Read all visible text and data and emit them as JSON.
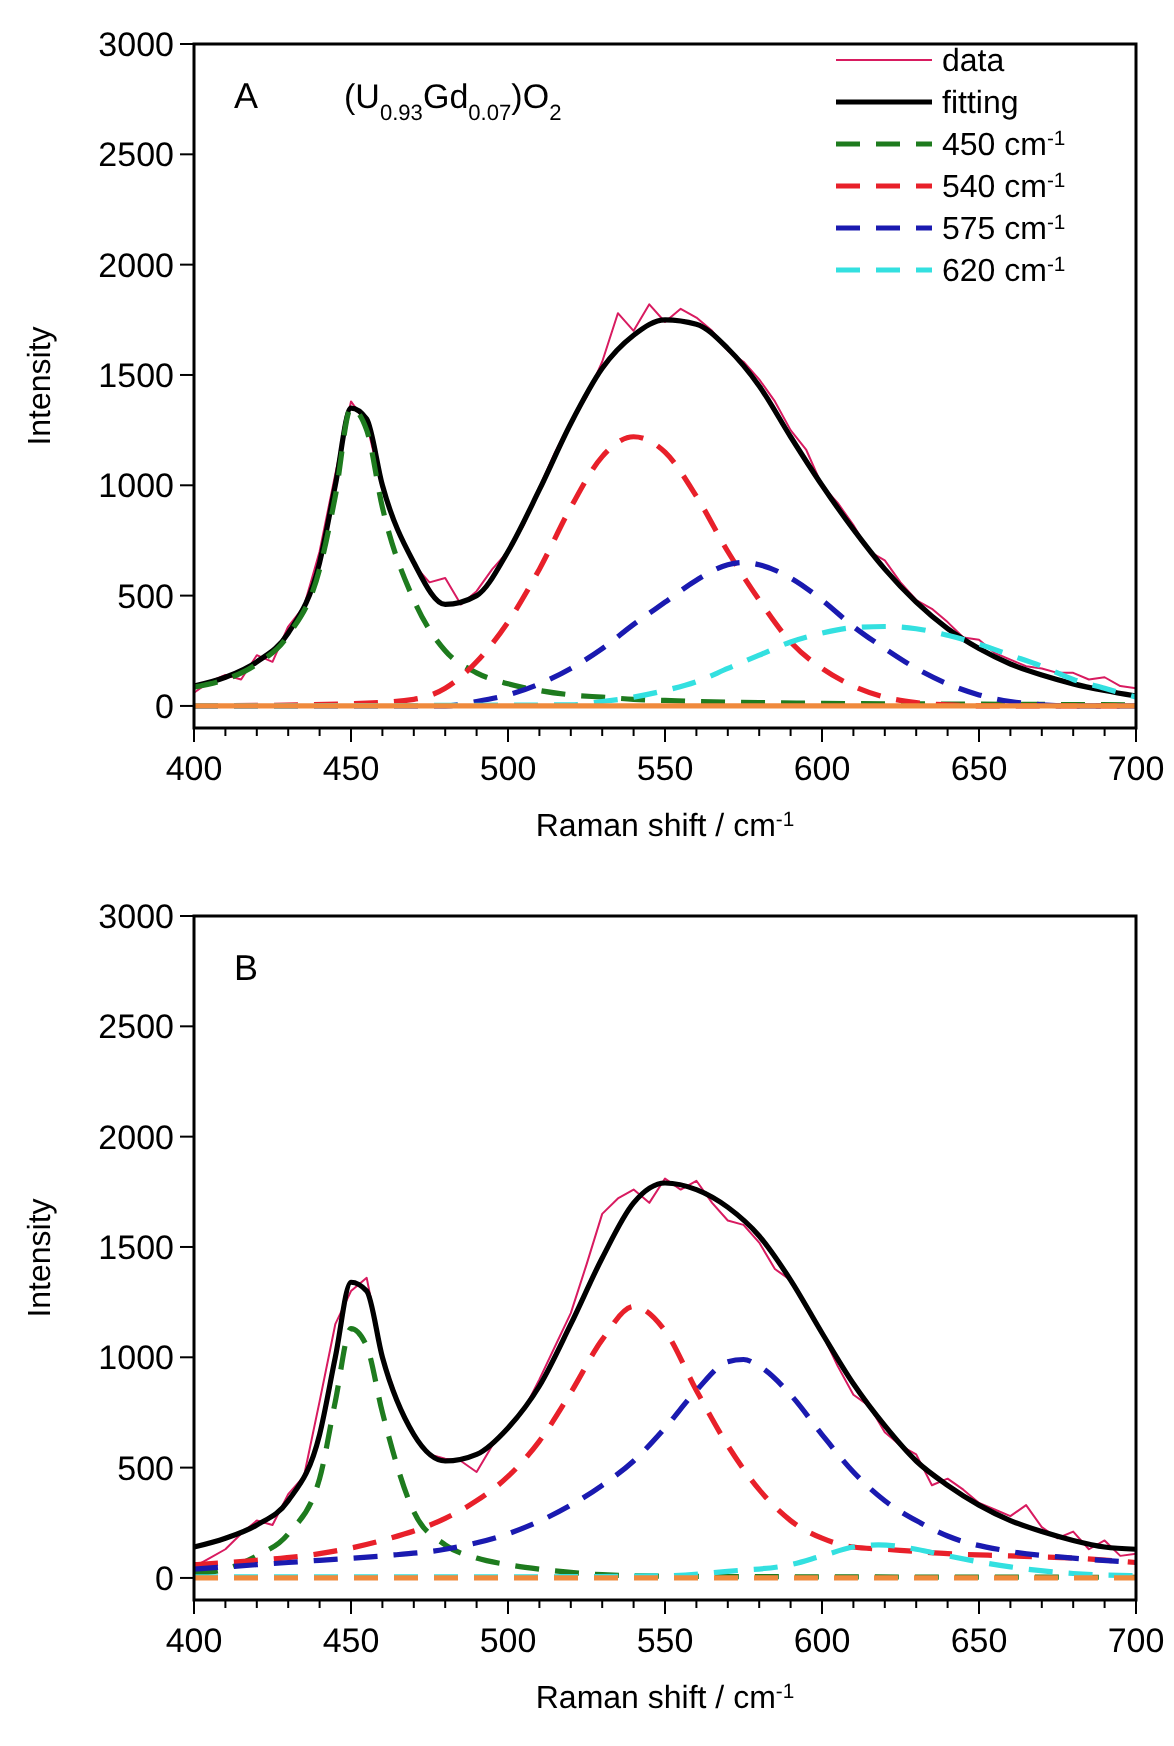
{
  "chart_data": [
    {
      "type": "line",
      "annotations": [
        "A",
        "(U$_{0.93}$Gd$_{0.07}$)O$_{2}$"
      ],
      "xlabel": "Raman shift / cm$^{-1}$",
      "ylabel": "Intensity",
      "xlim": [
        400,
        700
      ],
      "ylim": [
        -100,
        3000
      ],
      "xticks": [
        400,
        {
          "value": 410,
          "label": null
        },
        {
          "value": 420,
          "label": null
        },
        {
          "value": 430,
          "label": null
        },
        {
          "value": 440,
          "label": null
        },
        450,
        {
          "value": 460,
          "label": null
        },
        {
          "value": 470,
          "label": null
        },
        {
          "value": 480,
          "label": null
        },
        {
          "value": 490,
          "label": null
        },
        500,
        {
          "value": 510,
          "label": null
        },
        {
          "value": 520,
          "label": null
        },
        {
          "value": 530,
          "label": null
        },
        {
          "value": 540,
          "label": null
        },
        550,
        {
          "value": 560,
          "label": null
        },
        {
          "value": 570,
          "label": null
        },
        {
          "value": 580,
          "label": null
        },
        {
          "value": 590,
          "label": null
        },
        600,
        {
          "value": 610,
          "label": null
        },
        {
          "value": 620,
          "label": null
        },
        {
          "value": 630,
          "label": null
        },
        {
          "value": 640,
          "label": null
        },
        650,
        {
          "value": 660,
          "label": null
        },
        {
          "value": 670,
          "label": null
        },
        {
          "value": 680,
          "label": null
        },
        {
          "value": 690,
          "label": null
        },
        700
      ],
      "yticks": [
        0,
        500,
        1000,
        1500,
        2000,
        2500,
        3000
      ],
      "grid": false,
      "legend": "top right",
      "series": [
        {
          "name": "data",
          "color": "#d81b60",
          "line_style": "solid",
          "x": [
            400,
            405,
            410,
            415,
            420,
            425,
            430,
            435,
            440,
            445,
            450,
            455,
            460,
            465,
            470,
            475,
            480,
            485,
            490,
            495,
            500,
            505,
            510,
            515,
            520,
            525,
            530,
            535,
            540,
            545,
            550,
            555,
            560,
            565,
            570,
            575,
            580,
            585,
            590,
            595,
            600,
            605,
            610,
            615,
            620,
            625,
            630,
            635,
            640,
            645,
            650,
            655,
            660,
            665,
            670,
            675,
            680,
            685,
            690,
            695,
            700
          ],
          "values": [
            60,
            110,
            140,
            120,
            230,
            200,
            360,
            450,
            700,
            1050,
            1380,
            1280,
            980,
            800,
            640,
            560,
            580,
            460,
            520,
            620,
            700,
            820,
            990,
            1150,
            1290,
            1400,
            1560,
            1780,
            1700,
            1820,
            1740,
            1800,
            1760,
            1700,
            1610,
            1560,
            1480,
            1380,
            1250,
            1160,
            1000,
            920,
            820,
            700,
            660,
            560,
            480,
            440,
            380,
            310,
            300,
            240,
            210,
            180,
            170,
            150,
            150,
            120,
            130,
            90,
            80
          ]
        },
        {
          "name": "fitting",
          "color": "#000000",
          "line_style": "solid",
          "x": [
            400,
            410,
            420,
            430,
            440,
            445,
            450,
            455,
            460,
            470,
            480,
            490,
            500,
            510,
            520,
            530,
            540,
            550,
            560,
            570,
            580,
            590,
            600,
            610,
            620,
            630,
            640,
            650,
            660,
            670,
            680,
            690,
            700
          ],
          "values": [
            90,
            130,
            200,
            330,
            650,
            1000,
            1350,
            1300,
            1000,
            650,
            460,
            500,
            700,
            980,
            1280,
            1530,
            1680,
            1750,
            1730,
            1620,
            1450,
            1220,
            1000,
            800,
            620,
            470,
            350,
            260,
            190,
            140,
            100,
            70,
            45
          ]
        },
        {
          "name": "450 cm$^{-1}$",
          "color": "#1e7b1e",
          "line_style": "dashed",
          "x": [
            400,
            410,
            420,
            430,
            440,
            445,
            450,
            455,
            460,
            470,
            480,
            490,
            500,
            510,
            520,
            530,
            540,
            550,
            560,
            580,
            600,
            650,
            700
          ],
          "values": [
            85,
            120,
            190,
            320,
            620,
            950,
            1350,
            1250,
            900,
            480,
            250,
            150,
            100,
            70,
            50,
            40,
            30,
            25,
            20,
            15,
            12,
            8,
            5
          ]
        },
        {
          "name": "540 cm$^{-1}$",
          "color": "#e8202a",
          "line_style": "dashed",
          "x": [
            400,
            450,
            470,
            480,
            490,
            500,
            510,
            520,
            530,
            540,
            550,
            560,
            570,
            580,
            590,
            600,
            610,
            620,
            630,
            640,
            650,
            700
          ],
          "values": [
            0,
            10,
            30,
            80,
            200,
            380,
            620,
            900,
            1130,
            1220,
            1150,
            950,
            700,
            480,
            290,
            170,
            90,
            40,
            15,
            5,
            0,
            0
          ]
        },
        {
          "name": "575 cm$^{-1}$",
          "color": "#1a1ab0",
          "line_style": "dashed",
          "x": [
            400,
            480,
            490,
            500,
            510,
            520,
            530,
            540,
            550,
            560,
            570,
            575,
            580,
            590,
            600,
            610,
            620,
            630,
            640,
            650,
            660,
            670,
            680,
            700
          ],
          "values": [
            0,
            0,
            20,
            50,
            100,
            170,
            260,
            370,
            470,
            570,
            640,
            650,
            640,
            580,
            480,
            360,
            260,
            170,
            100,
            50,
            20,
            5,
            0,
            0
          ]
        },
        {
          "name": "620 cm$^{-1}$",
          "color": "#33e0e0",
          "line_style": "dashed",
          "x": [
            400,
            520,
            530,
            540,
            550,
            560,
            570,
            580,
            590,
            600,
            610,
            620,
            630,
            640,
            650,
            660,
            670,
            680,
            690,
            700
          ],
          "values": [
            0,
            5,
            20,
            40,
            70,
            110,
            170,
            230,
            290,
            330,
            355,
            360,
            350,
            320,
            280,
            230,
            180,
            120,
            80,
            40
          ]
        },
        {
          "color": "#f08a3c",
          "line_style": "solid",
          "x": [
            400,
            700
          ],
          "values": [
            0,
            0
          ]
        }
      ]
    },
    {
      "type": "line",
      "annotations": [
        "B"
      ],
      "xlabel": "Raman shift / cm$^{-1}$",
      "ylabel": "Intensity",
      "xlim": [
        400,
        700
      ],
      "ylim": [
        -100,
        3000
      ],
      "xticks": [
        400,
        {
          "value": 410,
          "label": null
        },
        {
          "value": 420,
          "label": null
        },
        {
          "value": 430,
          "label": null
        },
        {
          "value": 440,
          "label": null
        },
        450,
        {
          "value": 460,
          "label": null
        },
        {
          "value": 470,
          "label": null
        },
        {
          "value": 480,
          "label": null
        },
        {
          "value": 490,
          "label": null
        },
        500,
        {
          "value": 510,
          "label": null
        },
        {
          "value": 520,
          "label": null
        },
        {
          "value": 530,
          "label": null
        },
        {
          "value": 540,
          "label": null
        },
        550,
        {
          "value": 560,
          "label": null
        },
        {
          "value": 570,
          "label": null
        },
        {
          "value": 580,
          "label": null
        },
        {
          "value": 590,
          "label": null
        },
        600,
        {
          "value": 610,
          "label": null
        },
        {
          "value": 620,
          "label": null
        },
        {
          "value": 630,
          "label": null
        },
        {
          "value": 640,
          "label": null
        },
        650,
        {
          "value": 660,
          "label": null
        },
        {
          "value": 670,
          "label": null
        },
        {
          "value": 680,
          "label": null
        },
        {
          "value": 690,
          "label": null
        },
        700
      ],
      "yticks": [
        0,
        500,
        1000,
        1500,
        2000,
        2500,
        3000
      ],
      "grid": false,
      "series": [
        {
          "color": "#d81b60",
          "line_style": "solid",
          "x": [
            400,
            405,
            410,
            415,
            420,
            425,
            430,
            435,
            440,
            445,
            450,
            455,
            460,
            465,
            470,
            475,
            480,
            485,
            490,
            495,
            500,
            505,
            510,
            515,
            520,
            525,
            530,
            535,
            540,
            545,
            550,
            555,
            560,
            565,
            570,
            575,
            580,
            585,
            590,
            595,
            600,
            605,
            610,
            615,
            620,
            625,
            630,
            635,
            640,
            645,
            650,
            655,
            660,
            665,
            670,
            675,
            680,
            685,
            690,
            695,
            700
          ],
          "values": [
            50,
            90,
            130,
            200,
            260,
            240,
            380,
            460,
            800,
            1150,
            1300,
            1360,
            1000,
            800,
            640,
            560,
            540,
            530,
            480,
            600,
            680,
            760,
            900,
            1050,
            1200,
            1420,
            1650,
            1720,
            1760,
            1700,
            1810,
            1760,
            1800,
            1700,
            1620,
            1600,
            1520,
            1400,
            1350,
            1220,
            1110,
            960,
            830,
            780,
            660,
            600,
            560,
            420,
            450,
            400,
            340,
            310,
            280,
            330,
            230,
            180,
            210,
            130,
            170,
            100,
            110
          ]
        },
        {
          "color": "#000000",
          "line_style": "solid",
          "x": [
            400,
            410,
            420,
            430,
            440,
            445,
            450,
            455,
            460,
            470,
            480,
            490,
            500,
            510,
            520,
            530,
            540,
            550,
            560,
            570,
            580,
            590,
            600,
            610,
            620,
            630,
            640,
            650,
            660,
            670,
            680,
            690,
            700
          ],
          "values": [
            140,
            180,
            240,
            350,
            650,
            1000,
            1340,
            1300,
            1000,
            650,
            530,
            560,
            680,
            870,
            1150,
            1450,
            1700,
            1790,
            1760,
            1680,
            1550,
            1350,
            1110,
            880,
            690,
            530,
            420,
            330,
            260,
            210,
            170,
            140,
            130
          ]
        },
        {
          "color": "#1e7b1e",
          "line_style": "dashed",
          "x": [
            400,
            410,
            420,
            430,
            440,
            445,
            450,
            455,
            460,
            470,
            480,
            490,
            500,
            510,
            520,
            530,
            550,
            600,
            700
          ],
          "values": [
            20,
            40,
            100,
            200,
            450,
            800,
            1130,
            1050,
            750,
            300,
            150,
            90,
            60,
            40,
            25,
            15,
            8,
            5,
            3
          ]
        },
        {
          "color": "#e8202a",
          "line_style": "dashed",
          "x": [
            400,
            420,
            440,
            460,
            480,
            490,
            500,
            510,
            520,
            530,
            540,
            550,
            560,
            570,
            580,
            590,
            600,
            610,
            620,
            630,
            640,
            660,
            680,
            700
          ],
          "values": [
            60,
            80,
            110,
            170,
            270,
            350,
            460,
            620,
            840,
            1080,
            1230,
            1120,
            850,
            600,
            400,
            260,
            180,
            140,
            130,
            120,
            110,
            100,
            90,
            70
          ]
        },
        {
          "color": "#1a1ab0",
          "line_style": "dashed",
          "x": [
            400,
            420,
            440,
            460,
            480,
            500,
            520,
            530,
            540,
            550,
            560,
            570,
            575,
            580,
            590,
            600,
            610,
            620,
            630,
            640,
            660,
            680,
            700
          ],
          "values": [
            40,
            60,
            80,
            100,
            130,
            200,
            330,
            420,
            530,
            680,
            850,
            980,
            990,
            960,
            830,
            650,
            480,
            350,
            260,
            190,
            120,
            90,
            70
          ]
        },
        {
          "color": "#33e0e0",
          "line_style": "dashed",
          "x": [
            400,
            500,
            550,
            570,
            590,
            600,
            610,
            618,
            630,
            640,
            660,
            680,
            700
          ],
          "values": [
            5,
            5,
            10,
            30,
            60,
            100,
            140,
            150,
            130,
            100,
            50,
            20,
            10
          ]
        },
        {
          "color": "#f08a3c",
          "line_style": "dashed",
          "x": [
            400,
            700
          ],
          "values": [
            0,
            0
          ]
        }
      ]
    }
  ]
}
